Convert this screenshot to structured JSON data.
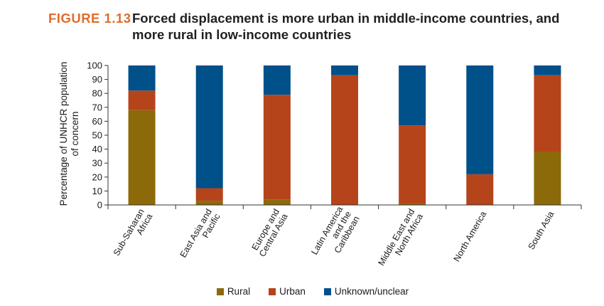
{
  "figure": {
    "label": "FIGURE 1.13",
    "title": "Forced displacement is more urban in middle-income countries, and more rural in low-income countries"
  },
  "colors": {
    "rural": "#8c6a0a",
    "urban": "#b6441a",
    "unknown": "#00508a",
    "title_accent": "#e06d2a"
  },
  "chart_data": {
    "type": "bar",
    "stacked": true,
    "ylabel": "Percentage of UNHCR population\nof concern",
    "xlabel": "",
    "ylim": [
      0,
      100
    ],
    "yticks": [
      0,
      10,
      20,
      30,
      40,
      50,
      60,
      70,
      80,
      90,
      100
    ],
    "categories": [
      "Sub-Saharan\nAfrica",
      "East Asia and\nPacific",
      "Europe and\nCentral Asia",
      "Latin America\nand the\nCaribbean",
      "Middle East and\nNorth Africa",
      "North America",
      "South Asia"
    ],
    "series": [
      {
        "name": "Rural",
        "key": "rural",
        "values": [
          68,
          3,
          4,
          0,
          1,
          0,
          38
        ]
      },
      {
        "name": "Urban",
        "key": "urban",
        "values": [
          14,
          9,
          75,
          93,
          56,
          22,
          55
        ]
      },
      {
        "name": "Unknown/unclear",
        "key": "unknown",
        "values": [
          18,
          88,
          21,
          7,
          43,
          78,
          7
        ]
      }
    ],
    "legend_position": "bottom-center",
    "grid": false
  }
}
